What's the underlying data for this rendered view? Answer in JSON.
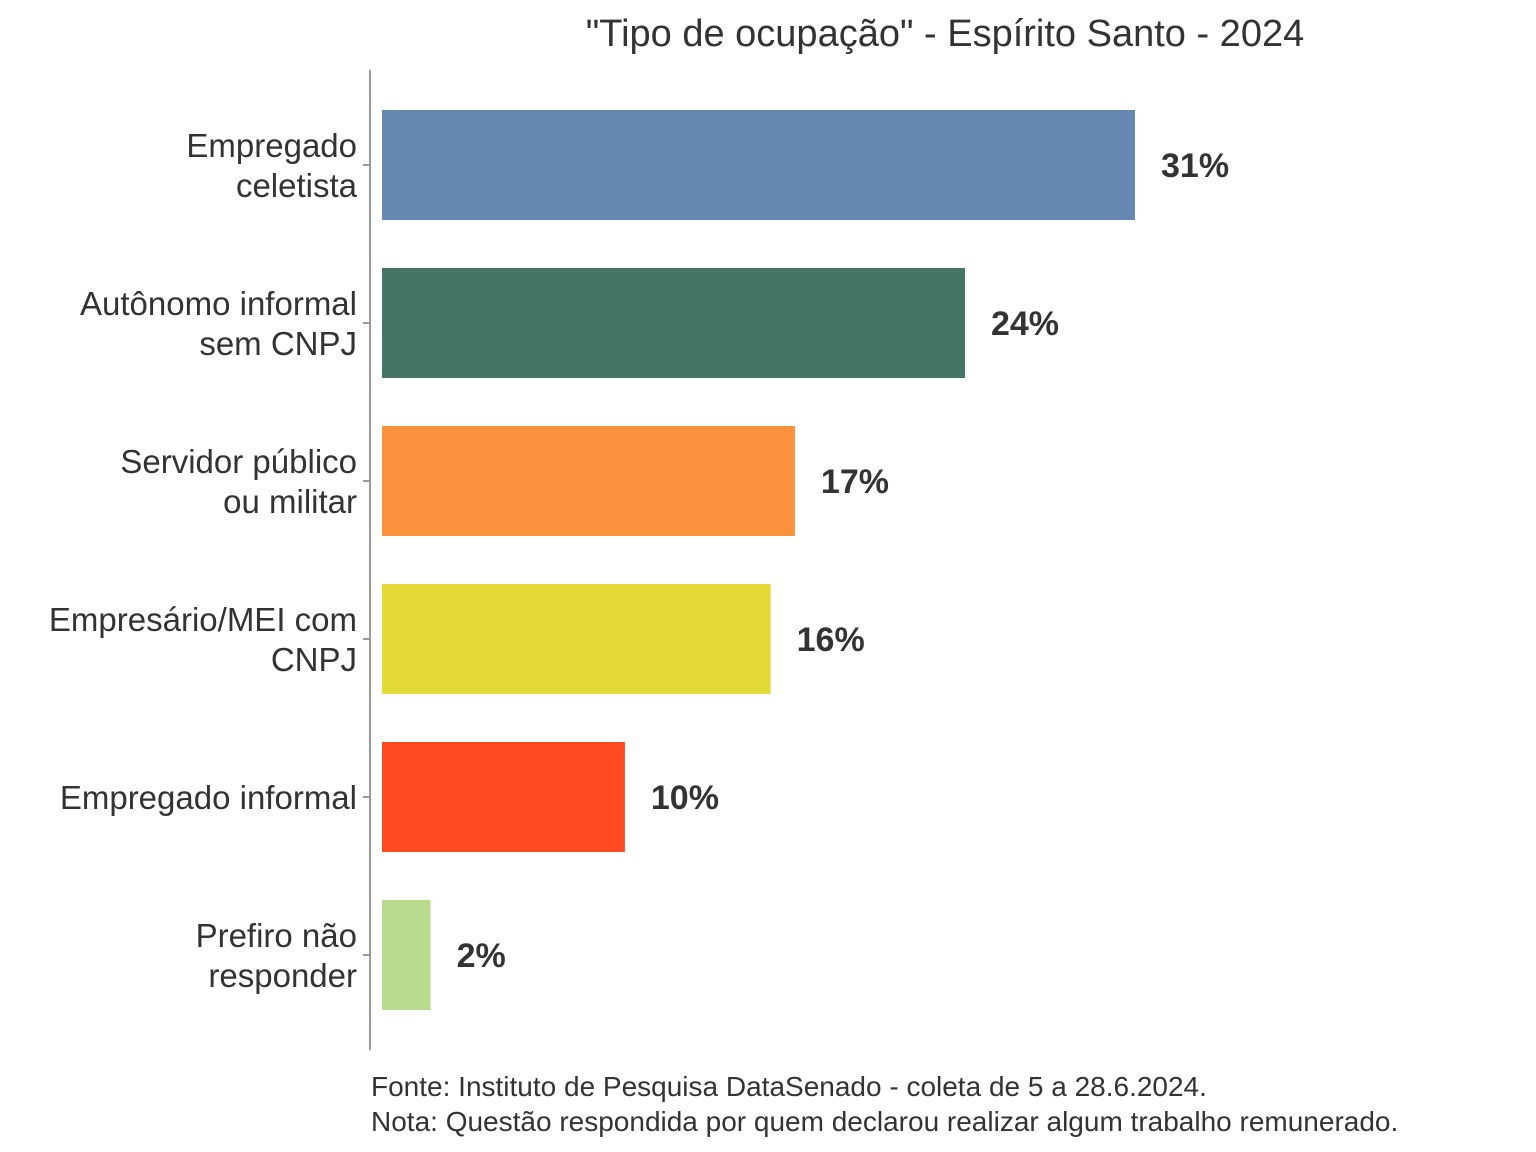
{
  "chart_data": {
    "type": "bar",
    "orientation": "horizontal",
    "title": "\"Tipo de ocupação\" - Espírito Santo - 2024",
    "categories": [
      [
        "Empregado",
        "celetista"
      ],
      [
        "Autônomo informal",
        "sem CNPJ"
      ],
      [
        "Servidor público",
        "ou militar"
      ],
      [
        "Empresário/MEI com",
        "CNPJ"
      ],
      [
        "Empregado informal"
      ],
      [
        "Prefiro não",
        "responder"
      ]
    ],
    "values": [
      31,
      24,
      17,
      16,
      10,
      2
    ],
    "value_labels": [
      "31%",
      "24%",
      "17%",
      "16%",
      "10%",
      "2%"
    ],
    "colors": [
      "#6488B0",
      "#447663",
      "#F9913D",
      "#E4D937",
      "#FF4A22",
      "#B8DB8F"
    ],
    "xlabel": "",
    "ylabel": "",
    "xlim": [
      0,
      31
    ],
    "grid": false,
    "legend": "none"
  },
  "footnote": {
    "source": "Fonte: Instituto de Pesquisa DataSenado - coleta de 5 a 28.6.2024.",
    "note": "Nota: Questão respondida por quem declarou realizar algum trabalho remunerado."
  }
}
